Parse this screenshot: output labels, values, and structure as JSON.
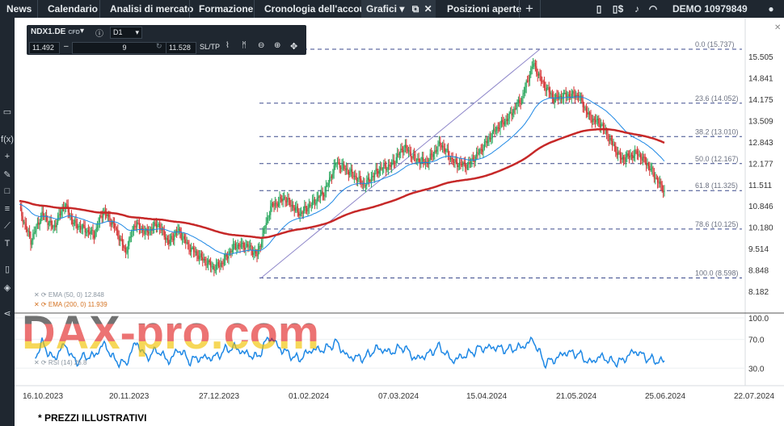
{
  "topbar": {
    "tabs": [
      {
        "label": "News"
      },
      {
        "label": "Calendario"
      },
      {
        "label": "Analisi di mercato"
      },
      {
        "label": "Formazione"
      },
      {
        "label": "Cronologia dell'account"
      },
      {
        "label": "Grafici ▾"
      },
      {
        "label": "Posizioni aperte"
      }
    ],
    "add_label": "+",
    "account_label": "DEMO  10979849",
    "icons": [
      "layout-icon",
      "notes-icon",
      "dollar-settings-icon",
      "bell-icon",
      "wifi-icon",
      "user-icon"
    ]
  },
  "toolbar": {
    "symbol": "NDX1.DE",
    "symbol_type": "CFD",
    "timeframe": "D1",
    "bid": "11.492",
    "ask": "11.528",
    "quantity": "9",
    "minus": "–",
    "plus": "+",
    "sltp": "SL/TP"
  },
  "indicators": {
    "ema50": "EMA (50, 0)  12.848",
    "ema200": "EMA (200, 0)  11.939",
    "rsi": "RSI (14)  26.8"
  },
  "watermark": "DAX-pro.com",
  "footer": "* PREZZI ILLUSTRATIVI",
  "chart_data": {
    "type": "candlestick",
    "symbol": "NDX1.DE",
    "price_axis_ticks": [
      "15.505",
      "14.841",
      "14.175",
      "13.509",
      "12.843",
      "12.177",
      "11.511",
      "10.846",
      "10.180",
      "9.514",
      "8.848",
      "8.182"
    ],
    "date_ticks": [
      "16.10.2023",
      "20.11.2023",
      "27.12.2023",
      "01.02.2024",
      "07.03.2024",
      "15.04.2024",
      "21.05.2024",
      "25.06.2024",
      "22.07.2024"
    ],
    "rsi_ticks": [
      "100.0",
      "70.0",
      "30.0"
    ],
    "fibonacci": [
      {
        "label": "0.0 (15.737)",
        "price": 15.737
      },
      {
        "label": "23.6 (14.052)",
        "price": 14.052
      },
      {
        "label": "38.2 (13.010)",
        "price": 13.01
      },
      {
        "label": "50.0 (12.167)",
        "price": 12.167
      },
      {
        "label": "61.8 (11.325)",
        "price": 11.325
      },
      {
        "label": "78.6 (10.125)",
        "price": 10.125
      },
      {
        "label": "100.0 (8.598)",
        "price": 8.598
      }
    ],
    "colors": {
      "up": "#26a65b",
      "down": "#d32f2f",
      "ema50": "#1e88e5",
      "ema200": "#c62828",
      "rsi": "#1e88e5",
      "fib": "#3b4a8c"
    }
  }
}
